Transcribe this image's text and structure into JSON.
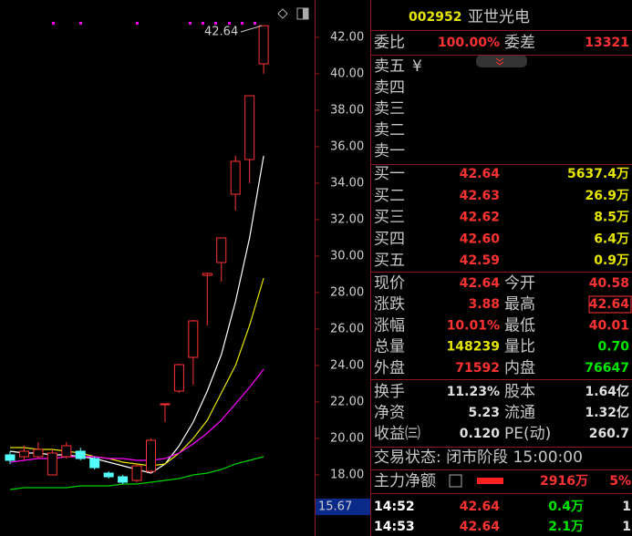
{
  "chart": {
    "type": "candlestick",
    "ylim": [
      15,
      44
    ],
    "yticks": [
      {
        "value": 42,
        "label": "42.00"
      },
      {
        "value": 40,
        "label": "40.00"
      },
      {
        "value": 38,
        "label": "38.00"
      },
      {
        "value": 36,
        "label": "36.00"
      },
      {
        "value": 34,
        "label": "34.00"
      },
      {
        "value": 32,
        "label": "32.00"
      },
      {
        "value": 30,
        "label": "30.00"
      },
      {
        "value": 28,
        "label": "28.00"
      },
      {
        "value": 26,
        "label": "26.00"
      },
      {
        "value": 24,
        "label": "24.00"
      },
      {
        "value": 22,
        "label": "22.00"
      },
      {
        "value": 20,
        "label": "20.00"
      },
      {
        "value": 18,
        "label": "18.00"
      }
    ],
    "up_color": "#ff3232",
    "down_color": "#54ffff",
    "candles": [
      {
        "open": 19.1,
        "high": 19.3,
        "low": 18.6,
        "close": 18.8
      },
      {
        "open": 19.0,
        "high": 19.6,
        "low": 18.8,
        "close": 19.3
      },
      {
        "open": 19.0,
        "high": 19.8,
        "low": 18.9,
        "close": 19.4
      },
      {
        "open": 18.0,
        "high": 19.4,
        "low": 18.0,
        "close": 19.2
      },
      {
        "open": 19.0,
        "high": 19.8,
        "low": 18.9,
        "close": 19.6
      },
      {
        "open": 19.3,
        "high": 19.5,
        "low": 18.8,
        "close": 18.9
      },
      {
        "open": 18.9,
        "high": 19.0,
        "low": 18.3,
        "close": 18.4
      },
      {
        "open": 18.1,
        "high": 18.2,
        "low": 17.8,
        "close": 17.9
      },
      {
        "open": 17.9,
        "high": 18.0,
        "low": 17.5,
        "close": 17.6
      },
      {
        "open": 17.7,
        "high": 18.6,
        "low": 17.6,
        "close": 18.5
      },
      {
        "open": 18.2,
        "high": 20.0,
        "low": 18.1,
        "close": 19.9
      },
      {
        "open": 21.9,
        "high": 21.9,
        "low": 20.9,
        "close": 21.9
      },
      {
        "open": 22.6,
        "high": 24.1,
        "low": 22.5,
        "close": 24.05
      },
      {
        "open": 24.45,
        "high": 26.5,
        "low": 22.95,
        "close": 26.45
      },
      {
        "open": 28.95,
        "high": 29.1,
        "low": 26.2,
        "close": 29.05
      },
      {
        "open": 29.65,
        "high": 31.0,
        "low": 28.6,
        "close": 31.0
      },
      {
        "open": 33.4,
        "high": 35.5,
        "low": 32.5,
        "close": 35.2
      },
      {
        "open": 35.3,
        "high": 38.8,
        "low": 34.0,
        "close": 38.8
      },
      {
        "open": 40.55,
        "high": 42.64,
        "low": 40.0,
        "close": 42.64
      }
    ],
    "series": [
      {
        "color": "#ffffff",
        "values": [
          19.3,
          19.2,
          19.2,
          19.1,
          19.1,
          19.0,
          18.9,
          18.7,
          18.5,
          18.3,
          18.1,
          18.6,
          19.6,
          20.9,
          22.6,
          24.6,
          27.5,
          31.0,
          35.5
        ]
      },
      {
        "color": "#e6e600",
        "values": [
          19.5,
          19.5,
          19.4,
          19.4,
          19.3,
          19.2,
          19.0,
          18.9,
          18.7,
          18.6,
          18.5,
          18.6,
          19.2,
          20.0,
          21.0,
          22.5,
          24.0,
          26.2,
          28.8
        ]
      },
      {
        "color": "#ff00ff",
        "values": [
          18.7,
          18.8,
          18.9,
          18.9,
          19.0,
          19.0,
          19.0,
          18.9,
          18.9,
          18.8,
          18.8,
          18.9,
          19.2,
          19.7,
          20.3,
          21.0,
          21.9,
          22.8,
          23.8
        ]
      },
      {
        "color": "#00d000",
        "values": [
          17.2,
          17.3,
          17.3,
          17.3,
          17.3,
          17.4,
          17.4,
          17.4,
          17.5,
          17.5,
          17.6,
          17.7,
          17.8,
          18.0,
          18.1,
          18.3,
          18.6,
          18.8,
          19.0
        ]
      }
    ],
    "high_label": "42.64",
    "cursor_label": "15.67"
  },
  "panel": {
    "code": "002952",
    "name": "亚世光电",
    "ratio": [
      "委比",
      "100.00%",
      "委差",
      "13321"
    ],
    "asks": [
      "卖五",
      "卖四",
      "卖三",
      "卖二",
      "卖一"
    ],
    "ask_icon": "¥",
    "bids": [
      [
        "买一",
        "42.64",
        "5637.4万"
      ],
      [
        "买二",
        "42.63",
        "26.9万"
      ],
      [
        "买三",
        "42.62",
        "8.5万"
      ],
      [
        "买四",
        "42.60",
        "6.4万"
      ],
      [
        "买五",
        "42.59",
        "0.9万"
      ]
    ],
    "quote": [
      [
        "现价",
        "42.64",
        "今开",
        "40.58"
      ],
      [
        "涨跌",
        "3.88",
        "最高",
        "42.64"
      ],
      [
        "涨幅",
        "10.01%",
        "最低",
        "40.01"
      ],
      [
        "总量",
        "148239",
        "量比",
        "0.70"
      ],
      [
        "外盘",
        "71592",
        "内盘",
        "76647"
      ]
    ],
    "fund": [
      [
        "换手",
        "11.23%",
        "股本",
        "1.64亿"
      ],
      [
        "净资",
        "5.23",
        "流通",
        "1.32亿"
      ],
      [
        "收益㈢",
        "0.120",
        "PE(动)",
        "260.7"
      ]
    ],
    "status": "交易状态: 闭市阶段 15:00:00",
    "flow": [
      "主力净额",
      "2916万",
      "5%"
    ],
    "ticks": [
      [
        "14:52",
        "42.64",
        "0.4万",
        "1"
      ],
      [
        "14:53",
        "42.64",
        "2.1万",
        "1"
      ]
    ]
  }
}
